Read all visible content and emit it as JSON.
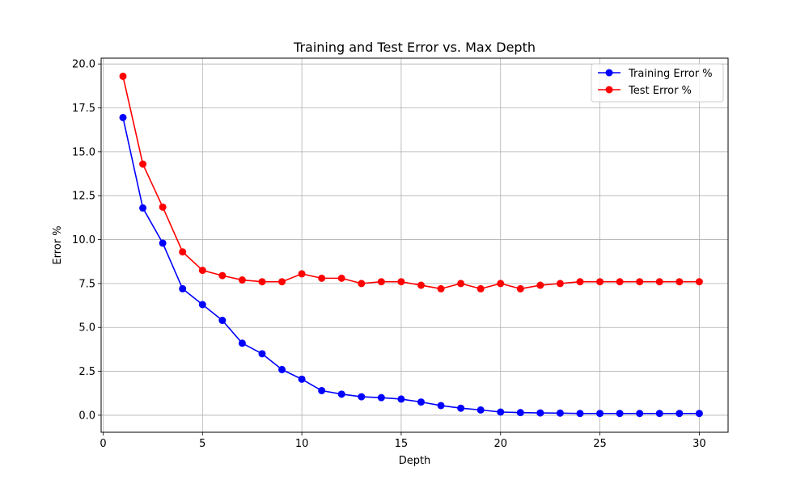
{
  "chart_data": {
    "type": "line",
    "title": "Training and Test Error vs. Max Depth",
    "xlabel": "Depth",
    "ylabel": "Error %",
    "xlim": [
      -0.1,
      31.45
    ],
    "ylim": [
      -0.97,
      20.33
    ],
    "x_ticks": [
      0,
      5,
      10,
      15,
      20,
      25,
      30
    ],
    "y_ticks": [
      0.0,
      2.5,
      5.0,
      7.5,
      10.0,
      12.5,
      15.0,
      17.5,
      20.0
    ],
    "x_tick_labels": [
      "0",
      "5",
      "10",
      "15",
      "20",
      "25",
      "30"
    ],
    "y_tick_labels": [
      "0.0",
      "2.5",
      "5.0",
      "7.5",
      "10.0",
      "12.5",
      "15.0",
      "17.5",
      "20.0"
    ],
    "grid": true,
    "legend_position": "upper right",
    "x": [
      1,
      2,
      3,
      4,
      5,
      6,
      7,
      8,
      9,
      10,
      11,
      12,
      13,
      14,
      15,
      16,
      17,
      18,
      19,
      20,
      21,
      22,
      23,
      24,
      25,
      26,
      27,
      28,
      29,
      30
    ],
    "series": [
      {
        "name": "Training Error %",
        "color": "#0000ff",
        "marker": "circle",
        "values": [
          16.95,
          11.8,
          9.8,
          7.2,
          6.3,
          5.4,
          4.1,
          3.5,
          2.6,
          2.05,
          1.4,
          1.2,
          1.05,
          1.0,
          0.92,
          0.75,
          0.55,
          0.4,
          0.3,
          0.18,
          0.15,
          0.13,
          0.12,
          0.1,
          0.1,
          0.1,
          0.1,
          0.1,
          0.1,
          0.1
        ]
      },
      {
        "name": "Test Error %",
        "color": "#ff0000",
        "marker": "circle",
        "values": [
          19.3,
          14.3,
          11.85,
          9.3,
          8.25,
          7.95,
          7.7,
          7.6,
          7.6,
          8.05,
          7.8,
          7.8,
          7.5,
          7.6,
          7.6,
          7.4,
          7.2,
          7.5,
          7.2,
          7.5,
          7.2,
          7.4,
          7.5,
          7.6,
          7.6,
          7.6,
          7.6,
          7.6,
          7.6,
          7.6
        ]
      }
    ]
  }
}
